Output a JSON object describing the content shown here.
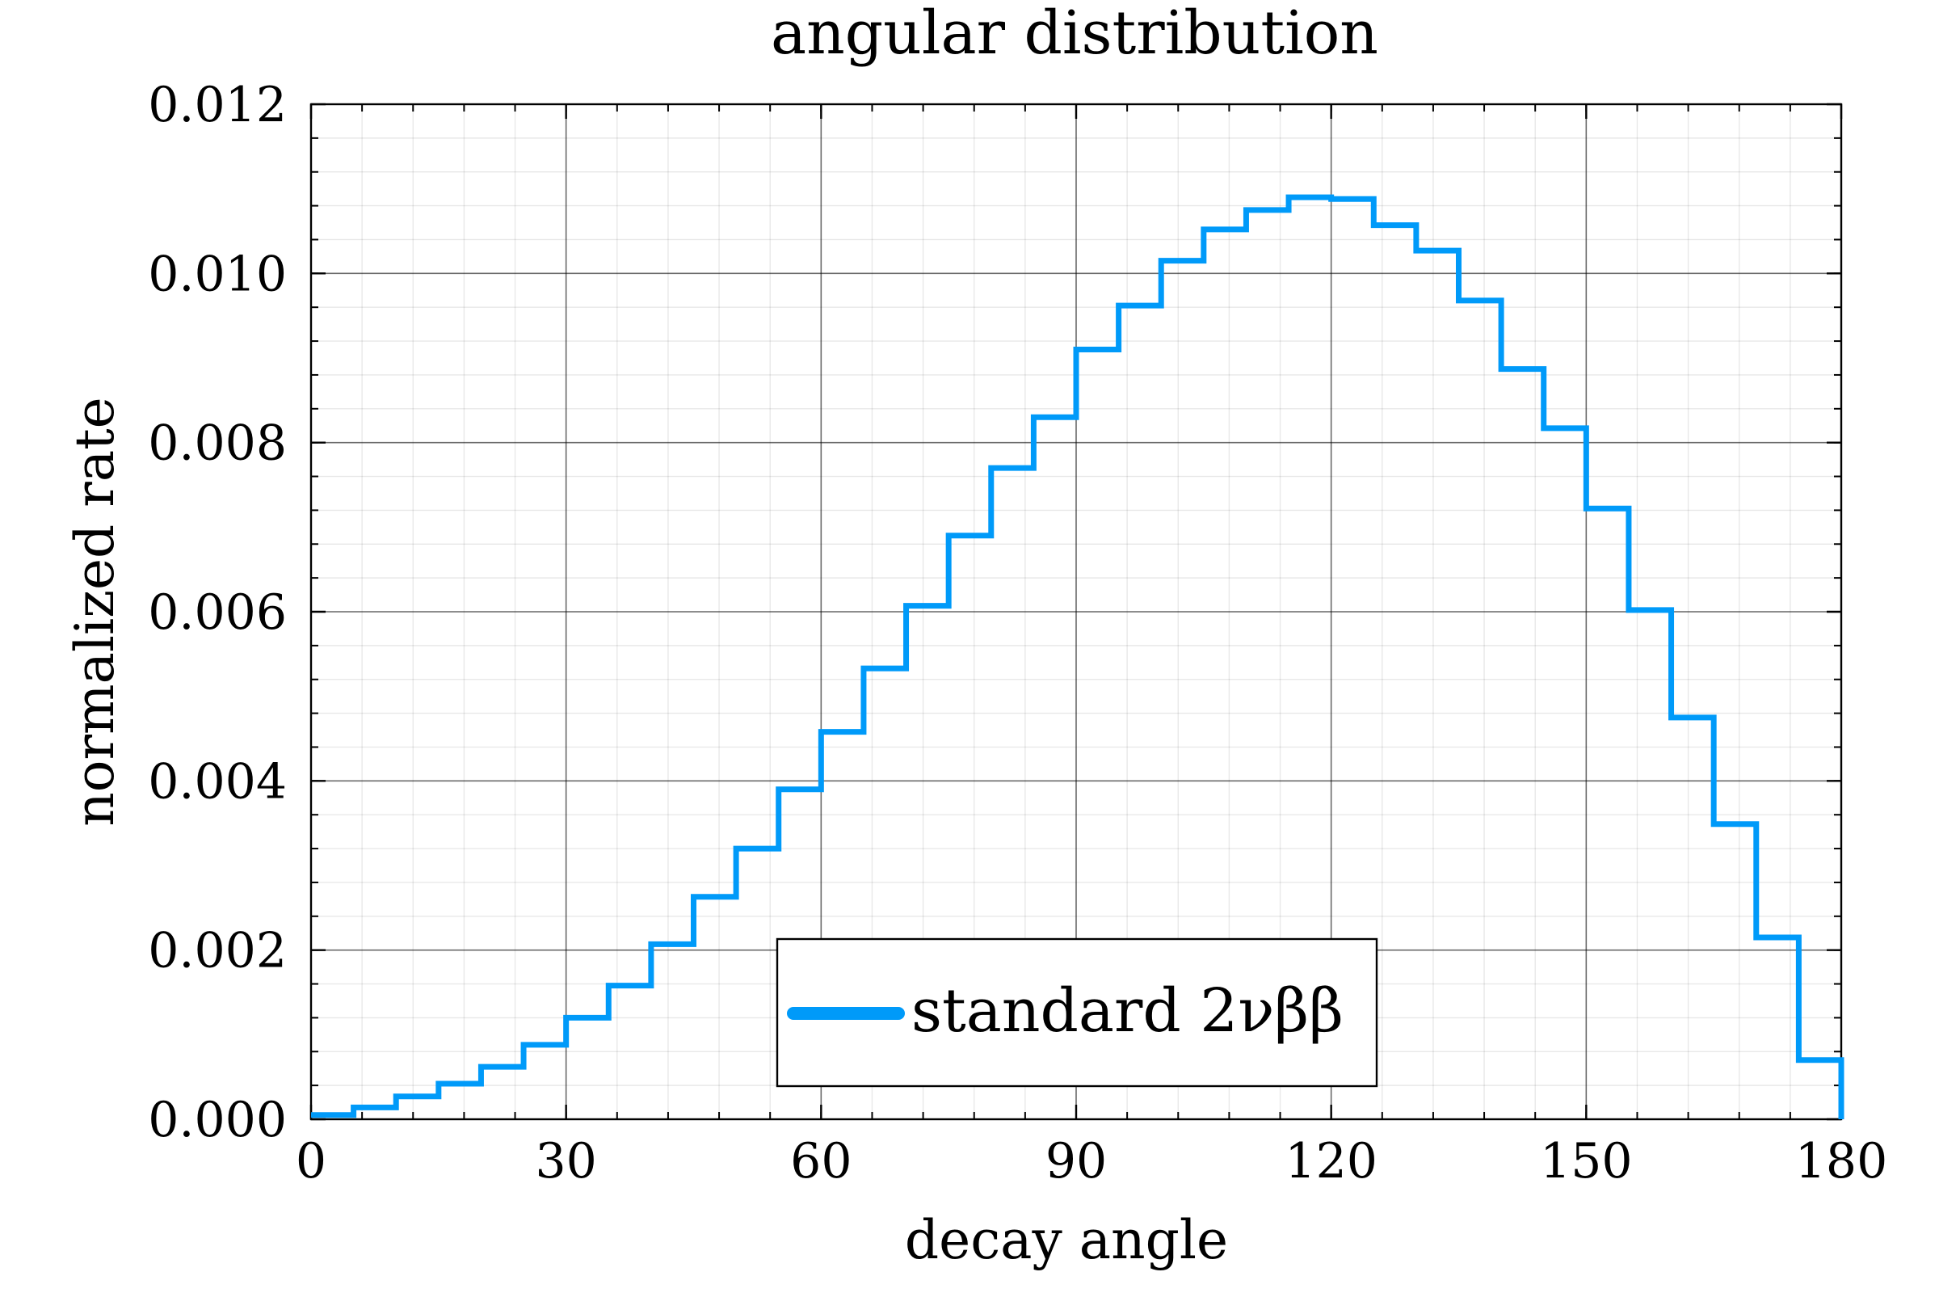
{
  "chart_data": {
    "type": "line",
    "style": "step histogram",
    "title": "angular distribution",
    "xlabel": "decay angle",
    "ylabel": "normalized rate",
    "xlim": [
      0,
      180
    ],
    "ylim": [
      0,
      0.012
    ],
    "x_ticks": [
      0,
      30,
      60,
      90,
      120,
      150,
      180
    ],
    "x_tick_labels": [
      "0",
      "30",
      "60",
      "90",
      "120",
      "150",
      "180"
    ],
    "y_ticks": [
      0,
      0.002,
      0.004,
      0.006,
      0.008,
      0.01,
      0.012
    ],
    "y_tick_labels": [
      "0.000",
      "0.002",
      "0.004",
      "0.006",
      "0.008",
      "0.010",
      "0.012"
    ],
    "x_minor_step": 6,
    "y_minor_step": 0.0004,
    "grid": true,
    "legend_position": "bottom-center",
    "series": [
      {
        "name": "standard 2νββ",
        "color": "#009af9",
        "bin_edges": [
          0,
          5,
          10,
          15,
          20,
          25,
          30,
          35,
          40,
          45,
          50,
          55,
          60,
          65,
          70,
          75,
          80,
          85,
          90,
          95,
          100,
          105,
          110,
          115,
          120,
          125,
          130,
          135,
          140,
          145,
          150,
          155,
          160,
          165,
          170,
          175,
          180
        ],
        "values": [
          5e-05,
          0.00014,
          0.00027,
          0.00042,
          0.00062,
          0.00088,
          0.0012,
          0.00158,
          0.00207,
          0.00263,
          0.0032,
          0.0039,
          0.00458,
          0.00533,
          0.00607,
          0.0069,
          0.0077,
          0.0083,
          0.0091,
          0.00962,
          0.01015,
          0.01052,
          0.01075,
          0.0109,
          0.01088,
          0.01057,
          0.01027,
          0.00968,
          0.00887,
          0.00817,
          0.00722,
          0.00602,
          0.00475,
          0.00349,
          0.00215,
          0.0007
        ]
      }
    ]
  }
}
